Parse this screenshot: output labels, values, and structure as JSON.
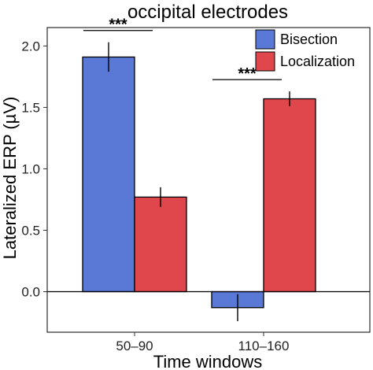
{
  "chart_data": {
    "type": "bar",
    "title": "occipital electrodes",
    "xlabel": "Time windows",
    "ylabel": "Lateralized ERP (µV)",
    "categories": [
      "50–90",
      "110–160"
    ],
    "series": [
      {
        "name": "Bisection",
        "values": [
          1.91,
          -0.13
        ],
        "errors": [
          0.12,
          0.11
        ],
        "color": "#5a78d6"
      },
      {
        "name": "Localization",
        "values": [
          0.77,
          1.57
        ],
        "errors": [
          0.08,
          0.06
        ],
        "color": "#e0474c"
      }
    ],
    "ylim": [
      -0.33,
      2.15
    ],
    "yticks": [
      "0.0",
      "0.5",
      "1.0",
      "1.5",
      "2.0"
    ],
    "legend_position": "top-right",
    "significance": [
      {
        "category": "50–90",
        "label": "***"
      },
      {
        "category": "110–160",
        "label": "***"
      }
    ],
    "grid": false
  }
}
